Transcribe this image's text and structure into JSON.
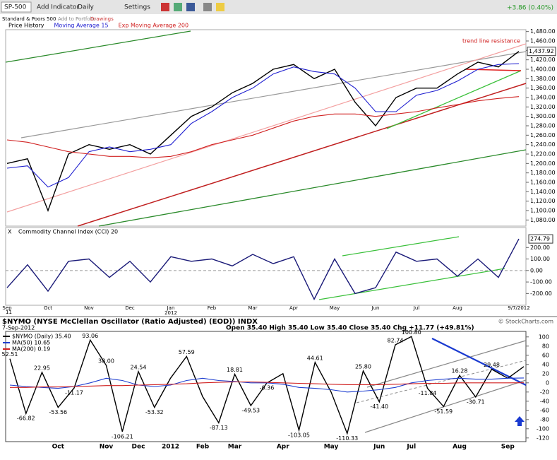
{
  "toolbar": {
    "symbol": "SP-500",
    "buttons": [
      "Add Indicator",
      "Daily",
      "Settings"
    ],
    "change": "+3.86 (0.40%)",
    "name": "Standard & Poors 500",
    "links": [
      "Add to Portfolio",
      "Drawings"
    ]
  },
  "chart_data": [
    {
      "type": "line",
      "annotations": [
        "trend line resistance"
      ],
      "series": [
        {
          "name": "Price History",
          "color": "#000000",
          "values": [
            1200,
            1210,
            1100,
            1220,
            1240,
            1230,
            1240,
            1220,
            1260,
            1300,
            1320,
            1350,
            1370,
            1400,
            1410,
            1380,
            1400,
            1330,
            1280,
            1340,
            1360,
            1360,
            1390,
            1415,
            1405,
            1437.92
          ],
          "value_labels": [
            null,
            null,
            null,
            null,
            null,
            null,
            null,
            null,
            null,
            null,
            null,
            null,
            null,
            null,
            null,
            null,
            null,
            null,
            null,
            null,
            null,
            null,
            null,
            null,
            null,
            "1,437.92"
          ]
        },
        {
          "name": "Moving Average 15",
          "color": "#1f1fd0",
          "values": [
            1190,
            1195,
            1150,
            1170,
            1225,
            1235,
            1225,
            1230,
            1240,
            1285,
            1310,
            1340,
            1360,
            1390,
            1405,
            1395,
            1390,
            1360,
            1310,
            1310,
            1345,
            1355,
            1375,
            1400,
            1410,
            1412
          ]
        },
        {
          "name": "Exp Moving Average 200",
          "color": "#d02020",
          "values": [
            1250,
            1245,
            1235,
            1225,
            1220,
            1215,
            1215,
            1212,
            1215,
            1225,
            1240,
            1250,
            1260,
            1275,
            1290,
            1300,
            1305,
            1305,
            1300,
            1305,
            1310,
            1318,
            1325,
            1333,
            1338,
            1342
          ]
        }
      ],
      "ylim": [
        1070,
        1490
      ],
      "yticks": [
        {
          "value": 1080,
          "label": "1,080.00"
        },
        {
          "value": 1100,
          "label": "1,100.00"
        },
        {
          "value": 1120,
          "label": "1,120.00"
        },
        {
          "value": 1140,
          "label": "1,140.00"
        },
        {
          "value": 1160,
          "label": "1,160.00"
        },
        {
          "value": 1180,
          "label": "1,180.00"
        },
        {
          "value": 1200,
          "label": "1,200.00"
        },
        {
          "value": 1220,
          "label": "1,220.00"
        },
        {
          "value": 1240,
          "label": "1,240.00"
        },
        {
          "value": 1260,
          "label": "1,260.00"
        },
        {
          "value": 1280,
          "label": "1,280.00"
        },
        {
          "value": 1300,
          "label": "1,300.00"
        },
        {
          "value": 1320,
          "label": "1,320.00"
        },
        {
          "value": 1340,
          "label": "1,340.00"
        },
        {
          "value": 1360,
          "label": "1,360.00"
        },
        {
          "value": 1380,
          "label": "1,380.00"
        },
        {
          "value": 1400,
          "label": "1,400.00"
        },
        {
          "value": 1420,
          "label": "1,420.00"
        },
        {
          "value": 1440,
          "label": "1,440.00"
        },
        {
          "value": 1460,
          "label": "1,460.00"
        },
        {
          "value": 1480,
          "label": "1,480.00"
        }
      ]
    },
    {
      "type": "line",
      "title": "Commodity Channel Index (CCI) 20",
      "x_start_label": "11",
      "x_year_label": "2012",
      "categories": [
        "Sep",
        null,
        "Oct",
        null,
        "Nov",
        null,
        "Dec",
        null,
        "Jan",
        null,
        "Feb",
        null,
        "Mar",
        null,
        "Apr",
        null,
        "May",
        null,
        "Jun",
        null,
        "Jul",
        null,
        "Aug",
        null,
        null,
        "9/7/2012"
      ],
      "series": [
        {
          "color": "#1a1a78",
          "values": [
            -150,
            50,
            -180,
            80,
            100,
            -60,
            80,
            -100,
            120,
            80,
            100,
            40,
            140,
            60,
            120,
            -250,
            100,
            -200,
            -150,
            160,
            80,
            100,
            -50,
            100,
            -60,
            274.79
          ],
          "value_labels": [
            null,
            null,
            null,
            null,
            null,
            null,
            null,
            null,
            null,
            null,
            null,
            null,
            null,
            null,
            null,
            null,
            null,
            null,
            null,
            null,
            null,
            null,
            null,
            null,
            null,
            "274.79"
          ]
        }
      ],
      "ylim": [
        -290,
        300
      ],
      "yticks": [
        {
          "value": 200,
          "label": "200.00"
        },
        {
          "value": 100,
          "label": "100.00"
        },
        {
          "value": 0,
          "label": "0.00"
        },
        {
          "value": -100,
          "label": "-100.00"
        },
        {
          "value": -200,
          "label": "-200.00"
        }
      ]
    },
    {
      "type": "line",
      "title": "$NYMO (NYSE McClellan Oscillator (Ratio Adjusted) (EOD)) INDX",
      "subtitle": "7-Sep-2012",
      "quote": "Open 35.40   High 35.40   Low 35.40   Close 35.40   Chg +11.77 (+49.81%)",
      "watermark": "© StockCharts.com",
      "categories": [
        null,
        null,
        null,
        "Oct",
        null,
        null,
        "Nov",
        null,
        "Dec",
        null,
        "2012",
        null,
        "Feb",
        null,
        "Mar",
        null,
        null,
        "Apr",
        null,
        null,
        "May",
        null,
        null,
        "Jun",
        null,
        "Jul",
        null,
        null,
        "Aug",
        null,
        null,
        "Sep",
        null
      ],
      "series": [
        {
          "name": "$NYMO (Daily) 35.40",
          "color": "#000000",
          "values": [
            52.51,
            -66.82,
            22.95,
            -53.56,
            -11.17,
            93.06,
            38.0,
            -106.21,
            24.54,
            -53.32,
            10,
            57.59,
            -30,
            -87.13,
            18.81,
            -49.53,
            -0.36,
            20,
            -103.05,
            44.61,
            -20,
            -110.33,
            25.8,
            -41.4,
            82.74,
            100.8,
            -11.84,
            -51.59,
            16.28,
            -30.71,
            29.48,
            10,
            35.4
          ],
          "value_labels": [
            "52.51",
            "-66.82",
            "22.95",
            "-53.56",
            "-11.17",
            "93.06",
            "38.00",
            "-106.21",
            "24.54",
            "-53.32",
            null,
            "57.59",
            null,
            "-87.13",
            "18.81",
            "-49.53",
            "-0.36",
            null,
            "-103.05",
            "44.61",
            null,
            "-110.33",
            "25.80",
            "-41.40",
            "82.74",
            "100.80",
            "-11.84",
            "-51.59",
            "16.28",
            "-30.71",
            "29.48",
            null,
            null
          ]
        },
        {
          "name": "MA(50) 10.65",
          "color": "#1f3fd0",
          "values": [
            -5,
            -8,
            -10,
            -12,
            -8,
            0,
            10,
            5,
            -5,
            -8,
            -5,
            5,
            10,
            5,
            3,
            0,
            0,
            -3,
            -10,
            -12,
            -15,
            -20,
            -18,
            -15,
            -10,
            0,
            5,
            8,
            10,
            8,
            8,
            10,
            10.65
          ]
        },
        {
          "name": "MA(200) 0.19",
          "color": "#d02020",
          "values": [
            -10,
            -10,
            -9,
            -9,
            -8,
            -7,
            -6,
            -6,
            -5,
            -4,
            -3,
            -2,
            0,
            1,
            2,
            2,
            1,
            0,
            -1,
            -2,
            -3,
            -4,
            -4,
            -4,
            -3,
            -2,
            -1,
            -1,
            0,
            0,
            0,
            0,
            0.19
          ]
        }
      ],
      "ylim": [
        -128,
        112
      ],
      "yticks": [
        100,
        80,
        60,
        40,
        20,
        0,
        -20,
        -40,
        -60,
        -80,
        -100,
        -120
      ]
    }
  ]
}
